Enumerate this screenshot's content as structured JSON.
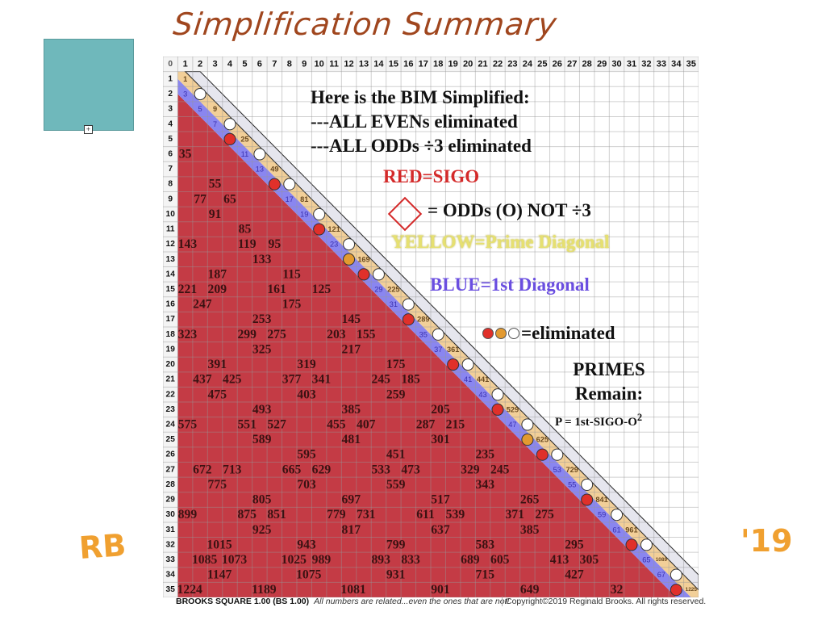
{
  "title": "Simplification Summary",
  "initials": "RB",
  "year_mark": "'19",
  "annotations": {
    "line1": "Here is the BIM Simplified:",
    "line2": "---ALL EVENs eliminated",
    "line3": "---ALL ODDs ÷3 eliminated",
    "red": "RED=SIGO",
    "odds": "= ODDs (O) NOT ÷3",
    "yellow": "YELLOW=Prime Diagonal",
    "blue": "BLUE=1st Diagonal",
    "eliminated": "=eliminated",
    "primes1": "PRIMES",
    "primes2": "Remain:",
    "formula": "P = 1st-SIGO-O",
    "formula_sup": "2"
  },
  "colors": {
    "red": "#c43b45",
    "blue": "#8a86f0",
    "yellow": "#f2cf98",
    "grey": "#e6e6ee",
    "circle_red": "#e0302a",
    "circle_orange": "#e39a30",
    "circle_white": "#ffffff"
  },
  "grid": {
    "size": 35,
    "corner": "0",
    "big_numbers": [
      [
        6,
        1,
        "35"
      ],
      [
        8,
        3,
        "55"
      ],
      [
        9,
        2,
        "77"
      ],
      [
        9,
        4,
        "65"
      ],
      [
        10,
        3,
        "91"
      ],
      [
        11,
        5,
        "85"
      ],
      [
        12,
        1,
        "143"
      ],
      [
        12,
        5,
        "119"
      ],
      [
        12,
        7,
        "95"
      ],
      [
        13,
        6,
        "133"
      ],
      [
        14,
        3,
        "187"
      ],
      [
        14,
        8,
        "115"
      ],
      [
        15,
        1,
        "221"
      ],
      [
        15,
        3,
        "209"
      ],
      [
        15,
        7,
        "161"
      ],
      [
        15,
        10,
        "125"
      ],
      [
        16,
        2,
        "247"
      ],
      [
        16,
        8,
        "175"
      ],
      [
        17,
        6,
        "253"
      ],
      [
        17,
        12,
        "145"
      ],
      [
        18,
        1,
        "323"
      ],
      [
        18,
        5,
        "299"
      ],
      [
        18,
        7,
        "275"
      ],
      [
        18,
        11,
        "203"
      ],
      [
        18,
        13,
        "155"
      ],
      [
        19,
        6,
        "325"
      ],
      [
        19,
        12,
        "217"
      ],
      [
        20,
        3,
        "391"
      ],
      [
        20,
        9,
        "319"
      ],
      [
        20,
        15,
        "175"
      ],
      [
        21,
        2,
        "437"
      ],
      [
        21,
        4,
        "425"
      ],
      [
        21,
        8,
        "377"
      ],
      [
        21,
        10,
        "341"
      ],
      [
        21,
        14,
        "245"
      ],
      [
        21,
        16,
        "185"
      ],
      [
        22,
        3,
        "475"
      ],
      [
        22,
        9,
        "403"
      ],
      [
        22,
        15,
        "259"
      ],
      [
        23,
        6,
        "493"
      ],
      [
        23,
        12,
        "385"
      ],
      [
        23,
        18,
        "205"
      ],
      [
        24,
        1,
        "575"
      ],
      [
        24,
        5,
        "551"
      ],
      [
        24,
        7,
        "527"
      ],
      [
        24,
        11,
        "455"
      ],
      [
        24,
        13,
        "407"
      ],
      [
        24,
        17,
        "287"
      ],
      [
        24,
        19,
        "215"
      ],
      [
        25,
        6,
        "589"
      ],
      [
        25,
        12,
        "481"
      ],
      [
        25,
        18,
        "301"
      ],
      [
        26,
        9,
        "595"
      ],
      [
        26,
        15,
        "451"
      ],
      [
        26,
        21,
        "235"
      ],
      [
        27,
        2,
        "672"
      ],
      [
        27,
        4,
        "713"
      ],
      [
        27,
        8,
        "665"
      ],
      [
        27,
        10,
        "629"
      ],
      [
        27,
        14,
        "533"
      ],
      [
        27,
        16,
        "473"
      ],
      [
        27,
        20,
        "329"
      ],
      [
        27,
        22,
        "245"
      ],
      [
        28,
        3,
        "775"
      ],
      [
        28,
        9,
        "703"
      ],
      [
        28,
        15,
        "559"
      ],
      [
        28,
        21,
        "343"
      ],
      [
        29,
        6,
        "805"
      ],
      [
        29,
        12,
        "697"
      ],
      [
        29,
        18,
        "517"
      ],
      [
        29,
        24,
        "265"
      ],
      [
        30,
        1,
        "899"
      ],
      [
        30,
        5,
        "875"
      ],
      [
        30,
        7,
        "851"
      ],
      [
        30,
        11,
        "779"
      ],
      [
        30,
        13,
        "731"
      ],
      [
        30,
        17,
        "611"
      ],
      [
        30,
        19,
        "539"
      ],
      [
        30,
        23,
        "371"
      ],
      [
        30,
        25,
        "275"
      ],
      [
        31,
        6,
        "925"
      ],
      [
        31,
        12,
        "817"
      ],
      [
        31,
        18,
        "637"
      ],
      [
        31,
        24,
        "385"
      ],
      [
        32,
        3,
        "1015"
      ],
      [
        32,
        9,
        "943"
      ],
      [
        32,
        15,
        "799"
      ],
      [
        32,
        21,
        "583"
      ],
      [
        32,
        27,
        "295"
      ],
      [
        33,
        2,
        "1085"
      ],
      [
        33,
        4,
        "1073"
      ],
      [
        33,
        8,
        "1025"
      ],
      [
        33,
        10,
        "989"
      ],
      [
        33,
        14,
        "893"
      ],
      [
        33,
        16,
        "833"
      ],
      [
        33,
        20,
        "689"
      ],
      [
        33,
        22,
        "605"
      ],
      [
        33,
        26,
        "413"
      ],
      [
        33,
        28,
        "305"
      ],
      [
        34,
        3,
        "1147"
      ],
      [
        34,
        9,
        "1075"
      ],
      [
        34,
        15,
        "931"
      ],
      [
        34,
        21,
        "715"
      ],
      [
        34,
        27,
        "427"
      ],
      [
        35,
        1,
        "1224"
      ],
      [
        35,
        6,
        "1189"
      ],
      [
        35,
        12,
        "1081"
      ],
      [
        35,
        18,
        "901"
      ],
      [
        35,
        24,
        "649"
      ],
      [
        35,
        30,
        "32"
      ]
    ]
  },
  "footer": {
    "product": "BROOKS SQUARE 1.00 (BS 1.00)",
    "tagline": "All numbers are related...even the ones that are not!",
    "copyright": "Copyright©2019 Reginald Brooks. All rights reserved."
  }
}
